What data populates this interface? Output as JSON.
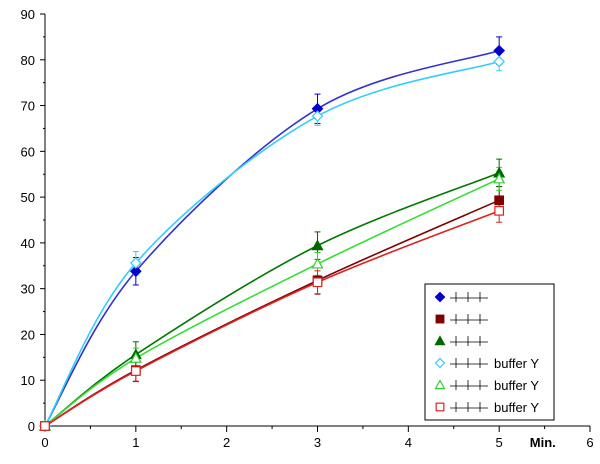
{
  "chart_data": {
    "type": "line",
    "title": "",
    "xlabel": "Min.",
    "ylabel": "",
    "xlim": [
      0,
      6
    ],
    "ylim": [
      0,
      90
    ],
    "x_ticks": [
      0,
      1,
      2,
      3,
      4,
      5,
      6
    ],
    "y_ticks": [
      0,
      10,
      20,
      30,
      40,
      50,
      60,
      70,
      80,
      90
    ],
    "grid": false,
    "legend_position": "bottom-right",
    "series": [
      {
        "name": "",
        "color": "#0000CC",
        "marker": "diamond",
        "filled": true,
        "x": [
          0,
          1,
          3,
          5
        ],
        "y": [
          0,
          33.8,
          69.3,
          82.0
        ],
        "err": [
          0,
          3.0,
          3.2,
          3.0
        ],
        "fit_color": "#3333CC"
      },
      {
        "name": "",
        "color": "#800000",
        "marker": "square",
        "filled": true,
        "x": [
          0,
          1,
          3,
          5
        ],
        "y": [
          0,
          12.2,
          31.8,
          49.3
        ],
        "err": [
          0,
          2.5,
          3.0,
          3.0
        ],
        "fit_color": "#800000"
      },
      {
        "name": "",
        "color": "#006600",
        "marker": "triangle",
        "filled": true,
        "x": [
          0,
          1,
          3,
          5
        ],
        "y": [
          0,
          15.6,
          39.4,
          55.3
        ],
        "err": [
          0,
          2.8,
          3.0,
          3.0
        ],
        "fit_color": "#007700"
      },
      {
        "name": "buffer Y",
        "color": "#33CCFF",
        "marker": "diamond",
        "filled": false,
        "x": [
          0,
          1,
          3,
          5
        ],
        "y": [
          0,
          35.6,
          67.7,
          79.6
        ],
        "err": [
          0,
          2.5,
          2.0,
          2.0
        ],
        "fit_color": "#33CCFF"
      },
      {
        "name": "buffer Y",
        "color": "#33CC33",
        "marker": "triangle",
        "filled": false,
        "x": [
          0,
          1,
          3,
          5
        ],
        "y": [
          0,
          14.8,
          35.4,
          54.0
        ],
        "err": [
          0,
          2.2,
          2.5,
          2.5
        ],
        "fit_color": "#33DD33"
      },
      {
        "name": "buffer Y",
        "color": "#DD2222",
        "marker": "square",
        "filled": false,
        "x": [
          0,
          1,
          3,
          5
        ],
        "y": [
          0,
          12.0,
          31.4,
          47.0
        ],
        "err": [
          0,
          2.2,
          2.5,
          2.5
        ],
        "fit_color": "#DD2222"
      }
    ]
  }
}
